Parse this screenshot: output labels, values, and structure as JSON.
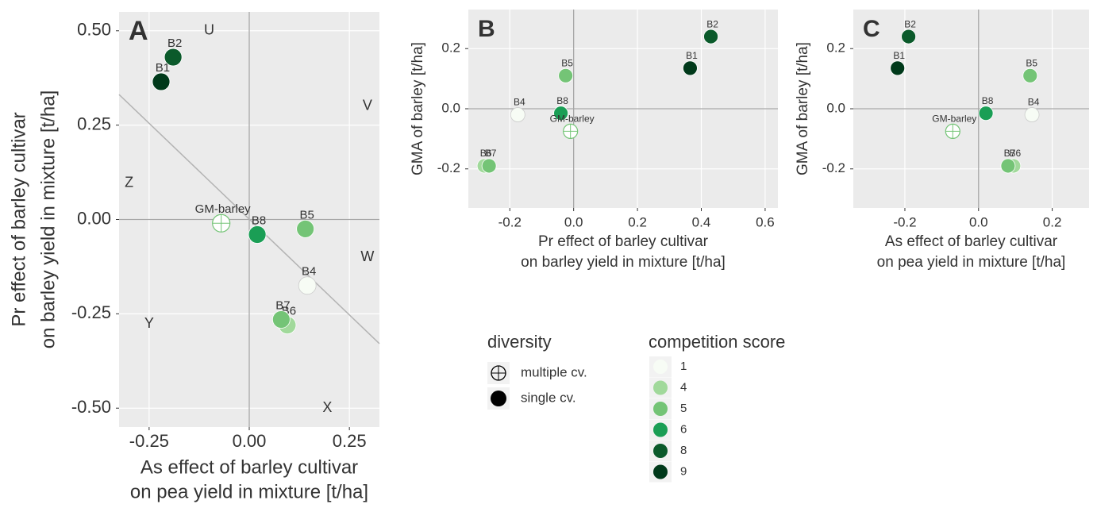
{
  "chart_data": [
    {
      "type": "scatter",
      "title": "A",
      "x_label": [
        "As effect of barley cultivar",
        "on pea yield in mixture [t/ha]"
      ],
      "y_label": [
        "Pr effect of barley cultivar",
        "on barley yield in mixture [t/ha]"
      ],
      "labels": [
        "B1",
        "B2",
        "B4",
        "B5",
        "B6",
        "B7",
        "B8",
        "GM-barley"
      ],
      "x": [
        -0.22,
        -0.19,
        0.145,
        0.14,
        0.095,
        0.08,
        0.02,
        -0.07
      ],
      "y": [
        0.365,
        0.43,
        -0.175,
        -0.025,
        -0.28,
        -0.265,
        -0.04,
        -0.01
      ],
      "scores": [
        9,
        8,
        1,
        5,
        4,
        5,
        6,
        null
      ],
      "xlim": [
        -0.325,
        0.325
      ],
      "ylim": [
        -0.55,
        0.55
      ],
      "xticks": [
        {
          "value": -0.25,
          "label": "-0.25"
        },
        {
          "value": 0,
          "label": "0.00"
        },
        {
          "value": 0.25,
          "label": "0.25"
        }
      ],
      "yticks": [
        {
          "value": -0.5,
          "label": "-0.50"
        },
        {
          "value": -0.25,
          "label": "-0.25"
        },
        {
          "value": 0,
          "label": "0.00"
        },
        {
          "value": 0.25,
          "label": "0.25"
        },
        {
          "value": 0.5,
          "label": "0.50"
        }
      ],
      "zero_lines": true,
      "fit_line": {
        "x": [
          -0.325,
          0.325
        ],
        "y": [
          0.331,
          -0.329
        ]
      },
      "annotations": [
        {
          "text": "U",
          "x": -0.1,
          "y": 0.5
        },
        {
          "text": "V",
          "x": 0.295,
          "y": 0.3
        },
        {
          "text": "W",
          "x": 0.295,
          "y": -0.1
        },
        {
          "text": "X",
          "x": 0.195,
          "y": -0.5
        },
        {
          "text": "Y",
          "x": -0.25,
          "y": -0.277
        },
        {
          "text": "Z",
          "x": -0.3,
          "y": 0.096
        }
      ]
    },
    {
      "type": "scatter",
      "title": "B",
      "x_label": [
        "Pr effect of barley cultivar",
        "on barley yield in mixture [t/ha]"
      ],
      "y_label": [
        "GMA of barley [t/ha]"
      ],
      "labels": [
        "B1",
        "B2",
        "B4",
        "B5",
        "B6",
        "B7",
        "B8",
        "GM-barley"
      ],
      "x": [
        0.365,
        0.43,
        -0.175,
        -0.025,
        -0.28,
        -0.265,
        -0.04,
        -0.01
      ],
      "y": [
        0.135,
        0.24,
        -0.02,
        0.11,
        -0.19,
        -0.19,
        -0.015,
        -0.075
      ],
      "scores": [
        9,
        8,
        1,
        5,
        4,
        5,
        6,
        null
      ],
      "xlim": [
        -0.33,
        0.64
      ],
      "ylim": [
        -0.33,
        0.33
      ],
      "xticks": [
        -0.2,
        {
          "value": 0,
          "label": "0.0"
        },
        0.2,
        0.4,
        0.6
      ],
      "yticks": [
        -0.2,
        {
          "value": 0,
          "label": "0.0"
        },
        0.2
      ],
      "zero_lines": true
    },
    {
      "type": "scatter",
      "title": "C",
      "x_label": [
        "As effect of barley cultivar",
        "on pea yield in mixture [t/ha]"
      ],
      "y_label": [
        "GMA of barley [t/ha]"
      ],
      "labels": [
        "B1",
        "B2",
        "B4",
        "B5",
        "B6",
        "B7",
        "B8",
        "GM-barley"
      ],
      "x": [
        -0.22,
        -0.19,
        0.145,
        0.14,
        0.095,
        0.08,
        0.02,
        -0.07
      ],
      "y": [
        0.135,
        0.24,
        -0.02,
        0.11,
        -0.19,
        -0.19,
        -0.015,
        -0.075
      ],
      "scores": [
        9,
        8,
        1,
        5,
        4,
        5,
        6,
        null
      ],
      "xlim": [
        -0.34,
        0.3
      ],
      "ylim": [
        -0.33,
        0.33
      ],
      "xticks": [
        -0.2,
        {
          "value": 0,
          "label": "0.0"
        },
        0.2
      ],
      "yticks": [
        -0.2,
        {
          "value": 0,
          "label": "0.0"
        },
        0.2
      ],
      "zero_lines": true
    }
  ],
  "legend": {
    "diversity": {
      "title": "diversity",
      "items": [
        "multiple cv.",
        "single cv."
      ]
    },
    "competition": {
      "title": "competition score",
      "levels": [
        1,
        4,
        5,
        6,
        8,
        9
      ],
      "colors": [
        "#f7fcf5",
        "#a1d99b",
        "#74c476",
        "#1a9e55",
        "#0b5a2b",
        "#00391a"
      ]
    }
  }
}
